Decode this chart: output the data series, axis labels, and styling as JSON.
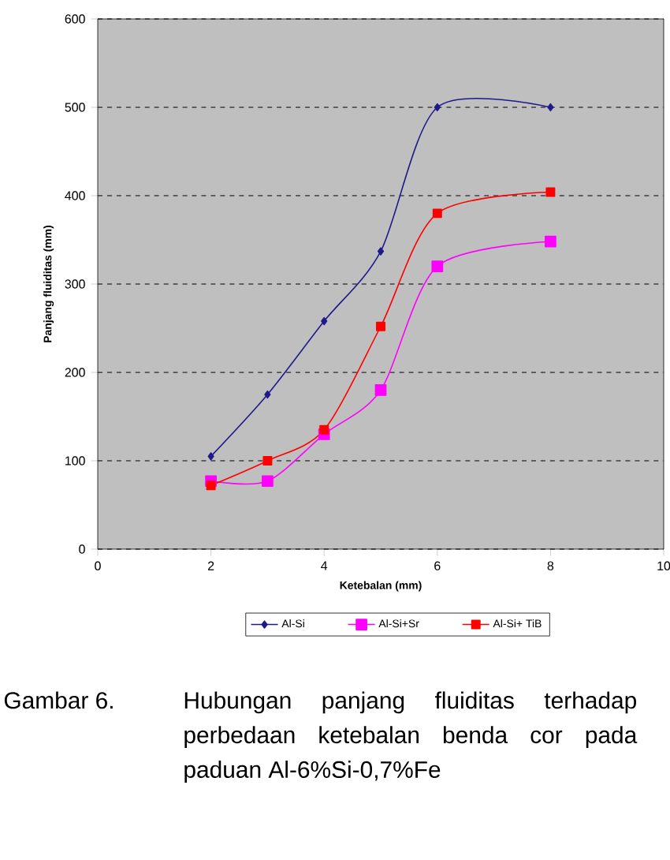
{
  "chart_data": {
    "type": "line",
    "xlabel": "Ketebalan (mm)",
    "ylabel": "Panjang fluiditas (mm)",
    "x": [
      2,
      3,
      4,
      5,
      6,
      8
    ],
    "series": [
      {
        "name": "Al-Si",
        "color": "#1f1a8c",
        "marker": "diamond",
        "values": [
          105,
          175,
          258,
          337,
          500,
          500
        ]
      },
      {
        "name": "Al-Si+Sr",
        "color": "#ff00ff",
        "marker": "square",
        "values": [
          77,
          77,
          130,
          180,
          320,
          348
        ]
      },
      {
        "name": "Al-Si+ TiB",
        "color": "#ff0000",
        "marker": "square",
        "values": [
          72,
          100,
          135,
          252,
          380,
          404
        ]
      }
    ],
    "xlim": [
      0,
      10
    ],
    "xticks": [
      0,
      2,
      4,
      6,
      8,
      10
    ],
    "ylim": [
      0,
      600
    ],
    "yticks": [
      0,
      100,
      200,
      300,
      400,
      500,
      600
    ],
    "grid": "y",
    "legend": "bottom",
    "line_style": "solid",
    "annotations": [
      "Gambar 6.",
      "Hubungan panjang fluiditas terhadap perbedaan ketebalan benda cor pada paduan Al-6%Si-0,7%Fe"
    ]
  }
}
